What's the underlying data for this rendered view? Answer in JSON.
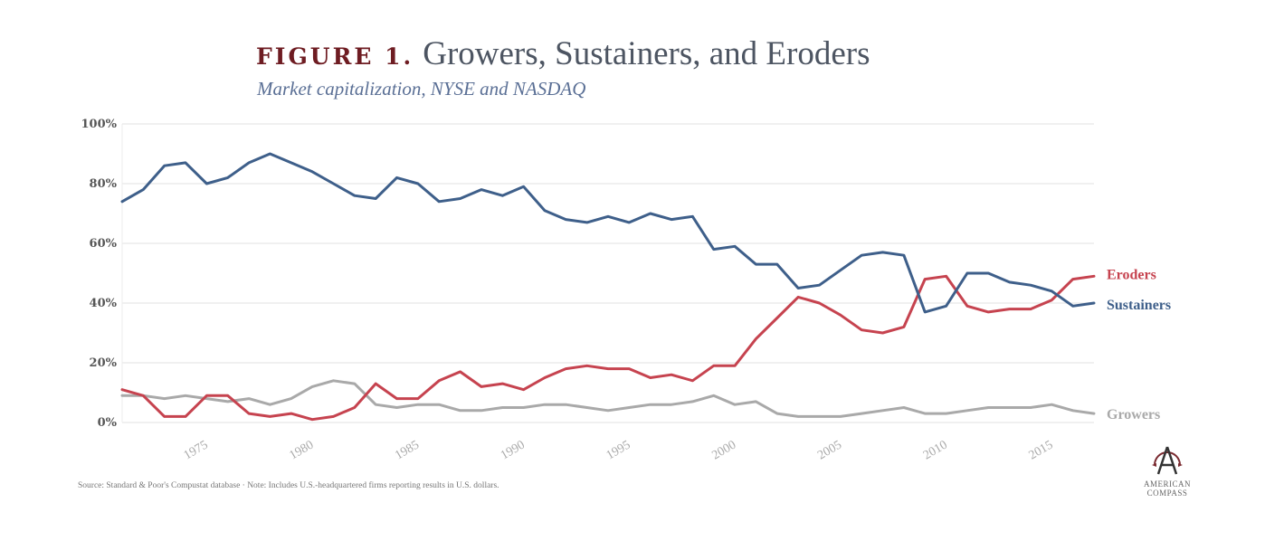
{
  "header": {
    "figure_label": "FIGURE 1.",
    "title": "Growers, Sustainers, and Eroders",
    "subtitle": "Market capitalization, NYSE and NASDAQ"
  },
  "footer": {
    "source": "Source: Standard & Poor's Compustat database · Note: Includes U.S.-headquartered firms reporting results in U.S. dollars.",
    "logo_line1": "AMERICAN",
    "logo_line2": "COMPASS"
  },
  "colors": {
    "sustainers": "#3e5f8a",
    "eroders": "#c6434f",
    "growers": "#a9a9a9",
    "figure_label": "#6e1c22",
    "gridline": "#ececec"
  },
  "chart_data": {
    "type": "line",
    "title": "Growers, Sustainers, and Eroders",
    "subtitle": "Market capitalization, NYSE and NASDAQ",
    "xlabel": "",
    "ylabel": "",
    "xlim": [
      1971,
      2017
    ],
    "ylim": [
      0,
      100
    ],
    "grid": true,
    "legend": "right (inline labels at line ends)",
    "x_ticks": [
      1975,
      1980,
      1985,
      1990,
      1995,
      2000,
      2005,
      2010,
      2015
    ],
    "y_ticks": [
      0,
      20,
      40,
      60,
      80,
      100
    ],
    "y_tick_labels": [
      "0%",
      "20%",
      "40%",
      "60%",
      "80%",
      "100%"
    ],
    "x": [
      1971,
      1972,
      1973,
      1974,
      1975,
      1976,
      1977,
      1978,
      1979,
      1980,
      1981,
      1982,
      1983,
      1984,
      1985,
      1986,
      1987,
      1988,
      1989,
      1990,
      1991,
      1992,
      1993,
      1994,
      1995,
      1996,
      1997,
      1998,
      1999,
      2000,
      2001,
      2002,
      2003,
      2004,
      2005,
      2006,
      2007,
      2008,
      2009,
      2010,
      2011,
      2012,
      2013,
      2014,
      2015,
      2016,
      2017
    ],
    "series": [
      {
        "name": "Sustainers",
        "key": "sustainers",
        "values": [
          74,
          78,
          86,
          87,
          80,
          82,
          87,
          90,
          87,
          84,
          80,
          76,
          75,
          82,
          80,
          74,
          75,
          78,
          76,
          79,
          71,
          68,
          67,
          69,
          67,
          70,
          68,
          69,
          58,
          59,
          53,
          53,
          45,
          46,
          51,
          56,
          57,
          56,
          37,
          39,
          50,
          50,
          47,
          46,
          44,
          39,
          40
        ]
      },
      {
        "name": "Eroders",
        "key": "eroders",
        "values": [
          11,
          9,
          2,
          2,
          9,
          9,
          3,
          2,
          3,
          1,
          2,
          5,
          13,
          8,
          8,
          14,
          17,
          12,
          13,
          11,
          15,
          18,
          19,
          18,
          18,
          15,
          16,
          14,
          19,
          19,
          28,
          35,
          42,
          40,
          36,
          31,
          30,
          32,
          48,
          49,
          39,
          37,
          38,
          38,
          41,
          48,
          49
        ]
      },
      {
        "name": "Growers",
        "key": "growers",
        "values": [
          9,
          9,
          8,
          9,
          8,
          7,
          8,
          6,
          8,
          12,
          14,
          13,
          6,
          5,
          6,
          6,
          4,
          4,
          5,
          5,
          6,
          6,
          5,
          4,
          5,
          6,
          6,
          7,
          9,
          6,
          7,
          3,
          2,
          2,
          2,
          3,
          4,
          5,
          3,
          3,
          4,
          5,
          5,
          5,
          6,
          4,
          3
        ]
      }
    ]
  }
}
